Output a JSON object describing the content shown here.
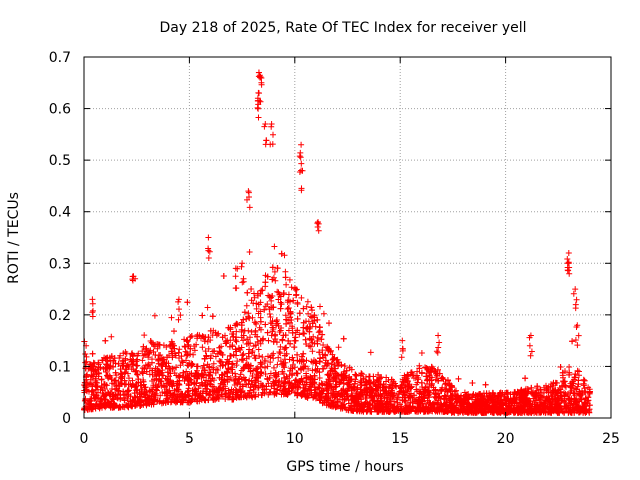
{
  "chart_data": {
    "type": "scatter",
    "title": "Day 218 of 2025, Rate Of TEC Index for receiver yell",
    "xlabel": "GPS time / hours",
    "ylabel": "ROTI / TECUs",
    "xlim": [
      0,
      25
    ],
    "ylim": [
      0,
      0.7
    ],
    "xticks": [
      0,
      5,
      10,
      15,
      20,
      25
    ],
    "yticks": [
      0,
      0.1,
      0.2,
      0.3,
      0.4,
      0.5,
      0.6,
      0.7
    ],
    "xtick_labels": [
      "0",
      "5",
      "10",
      "15",
      "20",
      "25"
    ],
    "ytick_labels": [
      "0",
      "0.1",
      "0.2",
      "0.3",
      "0.4",
      "0.5",
      "0.6",
      "0.7"
    ],
    "grid": true,
    "marker": "+",
    "color": "#ff0000",
    "series": [
      {
        "name": "ROTI",
        "notable_points": [
          {
            "x": 8.3,
            "y": 0.67
          },
          {
            "x": 8.35,
            "y": 0.66
          },
          {
            "x": 8.3,
            "y": 0.63
          },
          {
            "x": 8.25,
            "y": 0.62
          },
          {
            "x": 8.6,
            "y": 0.57
          },
          {
            "x": 8.9,
            "y": 0.57
          },
          {
            "x": 10.3,
            "y": 0.53
          },
          {
            "x": 10.3,
            "y": 0.48
          },
          {
            "x": 7.8,
            "y": 0.44
          },
          {
            "x": 11.1,
            "y": 0.38
          },
          {
            "x": 5.9,
            "y": 0.35
          },
          {
            "x": 23.0,
            "y": 0.32
          },
          {
            "x": 23.0,
            "y": 0.3
          },
          {
            "x": 7.2,
            "y": 0.29
          },
          {
            "x": 7.5,
            "y": 0.3
          },
          {
            "x": 2.35,
            "y": 0.275
          },
          {
            "x": 23.3,
            "y": 0.25
          },
          {
            "x": 0.4,
            "y": 0.23
          },
          {
            "x": 4.5,
            "y": 0.23
          },
          {
            "x": 23.4,
            "y": 0.18
          },
          {
            "x": 16.8,
            "y": 0.16
          },
          {
            "x": 21.2,
            "y": 0.16
          },
          {
            "x": 15.1,
            "y": 0.15
          },
          {
            "x": 0.1,
            "y": 0.14
          }
        ],
        "envelope": {
          "hours": [
            0,
            1,
            2,
            3,
            4,
            5,
            6,
            7,
            7.5,
            8,
            8.5,
            9,
            9.5,
            10,
            10.5,
            11,
            11.5,
            12,
            12.5,
            13,
            14,
            15,
            15.5,
            16,
            16.5,
            17,
            17.5,
            18,
            18.5,
            19,
            19.5,
            20,
            20.5,
            21,
            21.5,
            22,
            22.5,
            23,
            23.5,
            24
          ],
          "typical_max": [
            0.1,
            0.12,
            0.13,
            0.14,
            0.15,
            0.16,
            0.17,
            0.18,
            0.2,
            0.24,
            0.28,
            0.3,
            0.28,
            0.26,
            0.24,
            0.2,
            0.14,
            0.12,
            0.1,
            0.09,
            0.08,
            0.08,
            0.09,
            0.1,
            0.1,
            0.09,
            0.06,
            0.05,
            0.05,
            0.05,
            0.05,
            0.05,
            0.05,
            0.06,
            0.06,
            0.06,
            0.08,
            0.1,
            0.09,
            0.06
          ],
          "base": [
            0.015,
            0.02,
            0.02,
            0.025,
            0.03,
            0.03,
            0.035,
            0.035,
            0.04,
            0.04,
            0.045,
            0.045,
            0.045,
            0.045,
            0.04,
            0.035,
            0.025,
            0.02,
            0.015,
            0.012,
            0.012,
            0.012,
            0.012,
            0.012,
            0.012,
            0.012,
            0.01,
            0.01,
            0.01,
            0.01,
            0.01,
            0.01,
            0.01,
            0.01,
            0.01,
            0.01,
            0.01,
            0.01,
            0.01,
            0.01
          ]
        },
        "x_range_hours": [
          0,
          24
        ]
      }
    ]
  }
}
